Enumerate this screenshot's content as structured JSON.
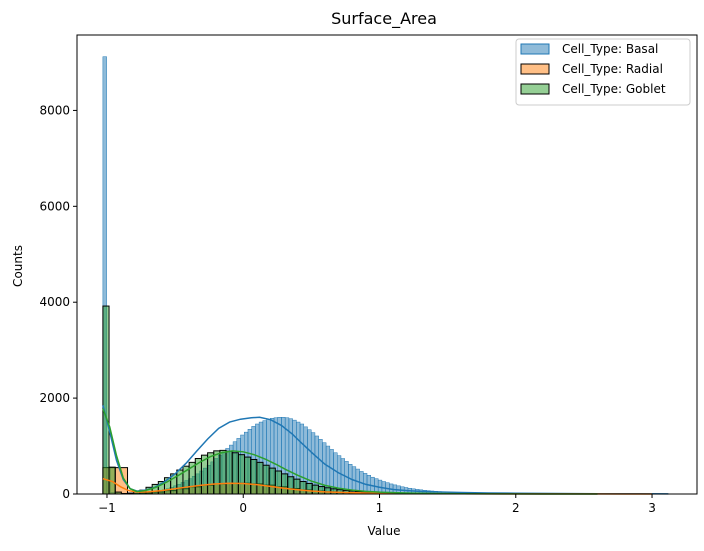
{
  "chart_data": {
    "type": "bar",
    "title": "Surface_Area",
    "xlabel": "Value",
    "ylabel": "Counts",
    "xlim": [
      -1.22,
      3.33
    ],
    "ylim": [
      0,
      9573
    ],
    "xticks": [
      -1,
      0,
      1,
      2,
      3
    ],
    "yticks": [
      0,
      2000,
      4000,
      6000,
      8000
    ],
    "legend_position": "top-right",
    "grid": false,
    "series": [
      {
        "name": "Cell_Type: Basal",
        "color": "#1f77b4",
        "bin_width": 0.0273,
        "bin_start": -1.03,
        "counts": [
          9120,
          560,
          35,
          10,
          5,
          5,
          5,
          5,
          10,
          10,
          15,
          20,
          30,
          40,
          55,
          70,
          90,
          110,
          140,
          170,
          200,
          240,
          280,
          320,
          370,
          420,
          480,
          540,
          600,
          670,
          740,
          810,
          880,
          950,
          1020,
          1090,
          1160,
          1230,
          1290,
          1350,
          1410,
          1460,
          1500,
          1530,
          1560,
          1580,
          1590,
          1600,
          1600,
          1590,
          1570,
          1540,
          1500,
          1460,
          1400,
          1340,
          1280,
          1210,
          1140,
          1070,
          1000,
          930,
          860,
          800,
          740,
          680,
          620,
          570,
          520,
          470,
          430,
          390,
          350,
          320,
          290,
          260,
          235,
          210,
          190,
          170,
          150,
          135,
          120,
          108,
          97,
          87,
          78,
          70,
          63,
          56,
          50,
          45,
          40,
          36,
          32,
          29,
          26,
          23,
          21,
          19,
          17,
          15,
          14,
          13,
          12,
          11,
          10,
          9,
          8,
          8,
          7,
          7,
          6,
          6,
          5,
          5,
          5,
          4,
          4,
          4,
          4,
          3,
          3,
          3,
          3,
          3,
          2,
          2,
          2,
          2,
          2,
          2,
          2,
          2,
          2,
          2,
          1,
          1,
          1,
          1,
          1,
          1,
          1,
          1,
          1,
          1,
          1,
          1,
          1
        ],
        "kde": [
          [
            -1.03,
            1850
          ],
          [
            -0.98,
            1300
          ],
          [
            -0.93,
            700
          ],
          [
            -0.88,
            300
          ],
          [
            -0.83,
            110
          ],
          [
            -0.78,
            60
          ],
          [
            -0.72,
            80
          ],
          [
            -0.65,
            140
          ],
          [
            -0.58,
            250
          ],
          [
            -0.5,
            420
          ],
          [
            -0.42,
            640
          ],
          [
            -0.34,
            900
          ],
          [
            -0.26,
            1150
          ],
          [
            -0.18,
            1370
          ],
          [
            -0.1,
            1500
          ],
          [
            -0.02,
            1560
          ],
          [
            0.06,
            1590
          ],
          [
            0.12,
            1600
          ],
          [
            0.2,
            1550
          ],
          [
            0.28,
            1430
          ],
          [
            0.36,
            1250
          ],
          [
            0.44,
            1030
          ],
          [
            0.52,
            820
          ],
          [
            0.6,
            620
          ],
          [
            0.7,
            440
          ],
          [
            0.8,
            300
          ],
          [
            0.9,
            200
          ],
          [
            1.0,
            140
          ],
          [
            1.1,
            95
          ],
          [
            1.2,
            70
          ],
          [
            1.3,
            55
          ],
          [
            1.4,
            45
          ],
          [
            1.6,
            32
          ],
          [
            1.8,
            22
          ],
          [
            2.0,
            16
          ],
          [
            2.3,
            10
          ],
          [
            2.6,
            6
          ],
          [
            2.9,
            4
          ],
          [
            3.12,
            3
          ]
        ]
      },
      {
        "name": "Cell_Type: Radial",
        "color": "#ff7f0e",
        "bin_width": 0.0904,
        "bin_start": -1.03,
        "counts": [
          550,
          550,
          10,
          20,
          40,
          70,
          110,
          150,
          185,
          210,
          225,
          225,
          210,
          185,
          150,
          115,
          85,
          62,
          45,
          33,
          25,
          18,
          14,
          11,
          9,
          7,
          6,
          5,
          4,
          3,
          3,
          2,
          2,
          2,
          1,
          1,
          1,
          1,
          1,
          1,
          1,
          1
        ],
        "kde": [
          [
            -1.03,
            320
          ],
          [
            -0.96,
            260
          ],
          [
            -0.9,
            150
          ],
          [
            -0.84,
            70
          ],
          [
            -0.78,
            40
          ],
          [
            -0.7,
            45
          ],
          [
            -0.6,
            70
          ],
          [
            -0.5,
            110
          ],
          [
            -0.4,
            150
          ],
          [
            -0.3,
            185
          ],
          [
            -0.2,
            210
          ],
          [
            -0.1,
            225
          ],
          [
            0.0,
            220
          ],
          [
            0.1,
            195
          ],
          [
            0.2,
            160
          ],
          [
            0.3,
            120
          ],
          [
            0.4,
            88
          ],
          [
            0.5,
            62
          ],
          [
            0.6,
            45
          ],
          [
            0.75,
            30
          ],
          [
            0.9,
            20
          ],
          [
            1.1,
            13
          ],
          [
            1.3,
            9
          ],
          [
            1.6,
            6
          ],
          [
            2.0,
            3
          ],
          [
            2.4,
            2
          ],
          [
            2.8,
            1
          ],
          [
            3.0,
            1
          ]
        ]
      },
      {
        "name": "Cell_Type: Goblet",
        "color": "#2ca02c",
        "bin_width": 0.0452,
        "bin_start": -1.03,
        "counts": [
          3920,
          560,
          40,
          10,
          20,
          40,
          80,
          140,
          200,
          260,
          340,
          420,
          500,
          580,
          660,
          740,
          810,
          860,
          900,
          910,
          890,
          860,
          820,
          770,
          720,
          660,
          600,
          540,
          480,
          420,
          360,
          310,
          260,
          220,
          185,
          155,
          130,
          108,
          90,
          75,
          62,
          52,
          43,
          36,
          30,
          25,
          21,
          18,
          15,
          13,
          11,
          9,
          8,
          7,
          6,
          5,
          4,
          4,
          3,
          3,
          2,
          2,
          2,
          2,
          1,
          1,
          1,
          1,
          1
        ],
        "kde": [
          [
            -1.03,
            1780
          ],
          [
            -0.98,
            1400
          ],
          [
            -0.93,
            800
          ],
          [
            -0.88,
            330
          ],
          [
            -0.83,
            110
          ],
          [
            -0.78,
            50
          ],
          [
            -0.72,
            70
          ],
          [
            -0.64,
            140
          ],
          [
            -0.56,
            250
          ],
          [
            -0.48,
            380
          ],
          [
            -0.4,
            520
          ],
          [
            -0.32,
            660
          ],
          [
            -0.24,
            780
          ],
          [
            -0.16,
            860
          ],
          [
            -0.08,
            900
          ],
          [
            0.0,
            880
          ],
          [
            0.08,
            820
          ],
          [
            0.16,
            730
          ],
          [
            0.24,
            620
          ],
          [
            0.32,
            500
          ],
          [
            0.4,
            390
          ],
          [
            0.5,
            270
          ],
          [
            0.6,
            180
          ],
          [
            0.7,
            120
          ],
          [
            0.8,
            80
          ],
          [
            0.9,
            55
          ],
          [
            1.0,
            38
          ],
          [
            1.2,
            20
          ],
          [
            1.4,
            11
          ],
          [
            1.6,
            6
          ],
          [
            1.9,
            3
          ],
          [
            2.2,
            1
          ],
          [
            2.6,
            1
          ]
        ]
      }
    ]
  }
}
